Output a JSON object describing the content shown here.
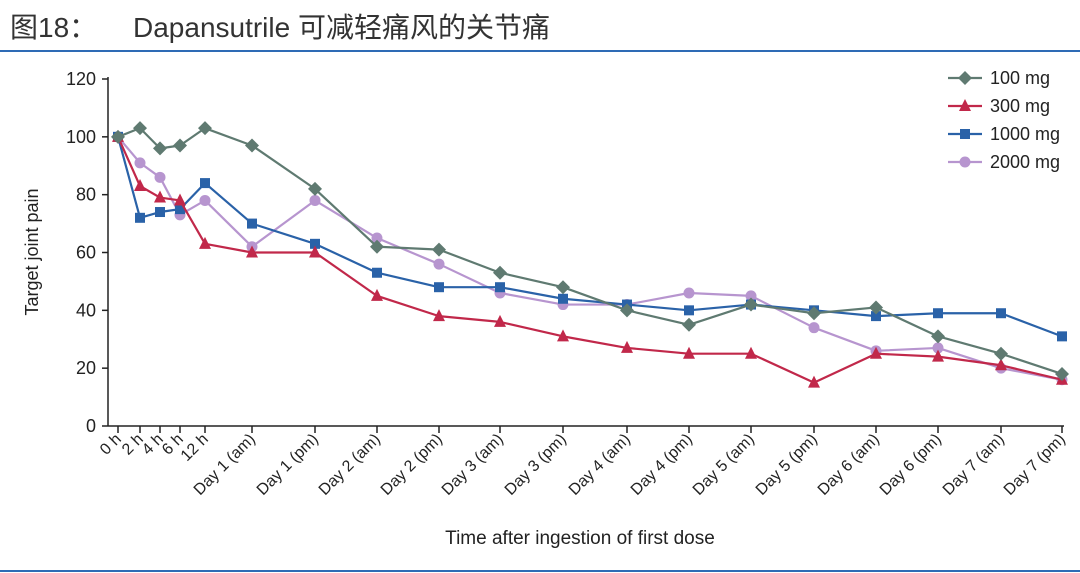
{
  "header": {
    "figure_label": "图18：",
    "title": "Dapansutrile 可减轻痛风的关节痛"
  },
  "chart_data": {
    "type": "line",
    "xlabel": "Time after ingestion of first dose",
    "ylabel": "Target joint pain",
    "ylim": [
      0,
      120
    ],
    "yticks": [
      0,
      20,
      40,
      60,
      80,
      100,
      120
    ],
    "grid": false,
    "legend_position": "top-right",
    "categories": [
      "0 h",
      "2 h",
      "4 h",
      "6 h",
      "12 h",
      "Day 1 (am)",
      "Day 1 (pm)",
      "Day 2 (am)",
      "Day 2 (pm)",
      "Day 3 (am)",
      "Day 3 (pm)",
      "Day 4 (am)",
      "Day 4 (pm)",
      "Day 5 (am)",
      "Day 5 (pm)",
      "Day 6 (am)",
      "Day 6 (pm)",
      "Day 7 (am)",
      "Day 7 (pm)"
    ],
    "series": [
      {
        "name": "100 mg",
        "color": "#5f7a71",
        "marker": "diamond",
        "values": [
          100,
          103,
          96,
          97,
          103,
          97,
          82,
          62,
          61,
          53,
          48,
          40,
          35,
          42,
          39,
          41,
          31,
          25,
          18
        ]
      },
      {
        "name": "300 mg",
        "color": "#c1284a",
        "marker": "triangle",
        "values": [
          100,
          83,
          79,
          78,
          63,
          60,
          60,
          45,
          38,
          36,
          31,
          27,
          25,
          25,
          15,
          25,
          24,
          21,
          16
        ]
      },
      {
        "name": "1000 mg",
        "color": "#2a62a8",
        "marker": "square",
        "values": [
          100,
          72,
          74,
          75,
          84,
          70,
          63,
          53,
          48,
          48,
          44,
          42,
          40,
          42,
          40,
          38,
          39,
          39,
          31
        ]
      },
      {
        "name": "2000 mg",
        "color": "#b795cf",
        "marker": "circle",
        "values": [
          100,
          91,
          86,
          73,
          78,
          62,
          78,
          65,
          56,
          46,
          42,
          42,
          46,
          45,
          34,
          26,
          27,
          20,
          16
        ]
      }
    ]
  }
}
